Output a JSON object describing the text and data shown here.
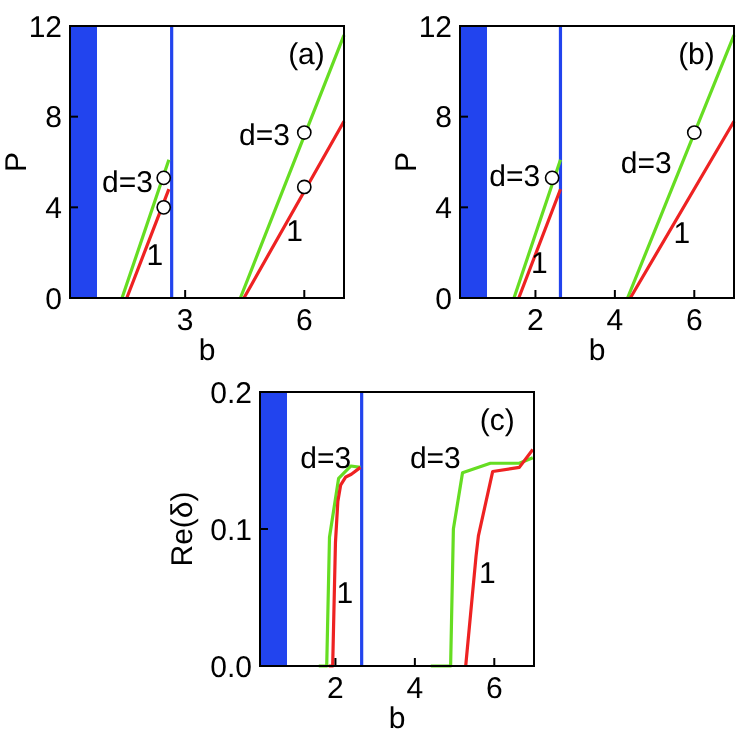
{
  "chart_data": [
    {
      "type": "line",
      "xlabel": "b",
      "ylabel": "P",
      "xlim": [
        0.1,
        7
      ],
      "ylim": [
        0,
        12
      ],
      "xticks": [
        3,
        6
      ],
      "yticks": [
        0,
        4,
        8,
        12
      ],
      "marker": "none",
      "line_style": "solid",
      "bands": [
        {
          "axis": "x",
          "from": 0.1,
          "to": 0.78,
          "color": "#2244ee"
        }
      ],
      "ref_lines": [
        {
          "axis": "x",
          "value": 2.66,
          "color": "#2244ee"
        }
      ],
      "series": [
        {
          "color": "#66dd22",
          "x": [
            1.41,
            2.59,
            3.5,
            4.39,
            7.0
          ],
          "values": [
            0,
            6.1,
            null,
            0,
            11.6
          ]
        },
        {
          "color": "#ee2222",
          "x": [
            1.53,
            2.59,
            3.5,
            4.48,
            7.0
          ],
          "values": [
            0,
            4.8,
            null,
            0,
            7.8
          ]
        },
        {
          "type": "scatter",
          "marker": "circle",
          "color": "#000000",
          "x": [
            2.46,
            2.46,
            6,
            6
          ],
          "values": [
            5.3,
            4.0,
            7.3,
            4.9
          ]
        }
      ],
      "annotations": [
        "(a)",
        "d=3",
        "1",
        "d=3",
        "1"
      ]
    },
    {
      "type": "line",
      "xlabel": "b",
      "ylabel": "P",
      "xlim": [
        0.1,
        7
      ],
      "ylim": [
        0,
        12
      ],
      "xticks": [
        2,
        4,
        6
      ],
      "yticks": [
        0,
        4,
        8,
        12
      ],
      "marker": "none",
      "line_style": "solid",
      "bands": [
        {
          "axis": "x",
          "from": 0.1,
          "to": 0.78,
          "color": "#2244ee"
        }
      ],
      "ref_lines": [
        {
          "axis": "x",
          "value": 2.63,
          "color": "#2244ee"
        }
      ],
      "series": [
        {
          "color": "#66dd22",
          "x": [
            1.46,
            2.63,
            3.5,
            4.32,
            7.0
          ],
          "values": [
            0,
            6.1,
            null,
            0,
            11.6
          ]
        },
        {
          "color": "#ee2222",
          "x": [
            1.58,
            2.63,
            3.5,
            4.39,
            7.0
          ],
          "values": [
            0,
            4.8,
            null,
            0,
            7.8
          ]
        },
        {
          "type": "scatter",
          "marker": "circle",
          "color": "#000000",
          "x": [
            2.42,
            6
          ],
          "values": [
            5.3,
            7.3
          ]
        }
      ],
      "annotations": [
        "(b)",
        "d=3",
        "1",
        "d=3",
        "1"
      ]
    },
    {
      "type": "line",
      "xlabel": "b",
      "ylabel": "Re(δ)",
      "xlim": [
        0.1,
        7
      ],
      "ylim": [
        0,
        0.2
      ],
      "xticks": [
        2,
        4,
        6
      ],
      "yticks": [
        {
          "value": 0,
          "label": "0.0"
        },
        {
          "value": 0.1,
          "label": "0.1"
        },
        {
          "value": 0.2,
          "label": "0.2"
        }
      ],
      "marker": "none",
      "line_style": "solid",
      "bands": [
        {
          "axis": "x",
          "from": 0.1,
          "to": 0.78,
          "color": "#2244ee"
        }
      ],
      "ref_lines": [
        {
          "axis": "x",
          "value": 2.66,
          "color": "#2244ee"
        }
      ],
      "series": [
        {
          "color": "#66dd22",
          "x": [
            1.58,
            1.78,
            1.85,
            2.08,
            2.39,
            2.63,
            3.5,
            4.4,
            4.9,
            4.97,
            5.2,
            5.9,
            6.63,
            6.97
          ],
          "values": [
            0,
            0,
            0.094,
            0.137,
            0.146,
            0.145,
            null,
            0,
            0,
            0.1,
            0.141,
            0.148,
            0.148,
            0.152
          ]
        },
        {
          "color": "#ee2222",
          "x": [
            1.83,
            1.93,
            2.0,
            2.06,
            2.13,
            2.26,
            2.4,
            2.63,
            3.5,
            5.28,
            5.54,
            5.6,
            5.96,
            6.63,
            6.97
          ],
          "values": [
            0,
            0,
            0.09,
            0.12,
            0.132,
            0.138,
            0.14,
            0.145,
            null,
            0,
            0.08,
            0.095,
            0.142,
            0.145,
            0.158
          ]
        }
      ],
      "annotations": [
        "(c)",
        "d=3",
        "1",
        "d=3",
        "1"
      ]
    }
  ]
}
